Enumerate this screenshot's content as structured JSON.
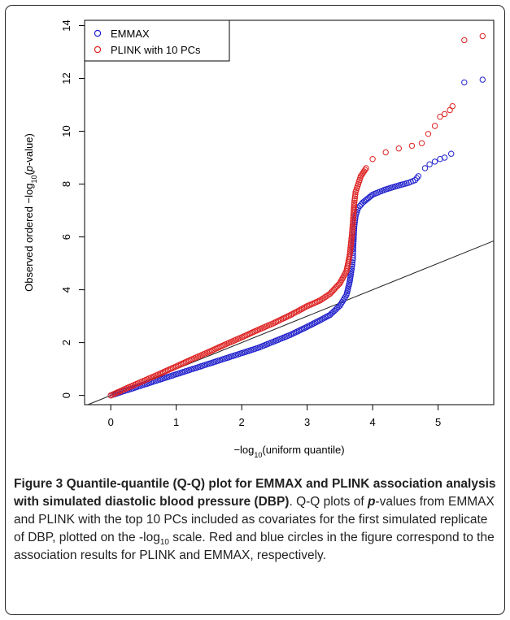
{
  "chart_data": {
    "type": "scatter",
    "title": "",
    "xlabel": "−log10(uniform quantile)",
    "ylabel": "Observed ordered −log10(p-value)",
    "xlim": [
      -0.4,
      5.85
    ],
    "ylim": [
      -0.35,
      14.2
    ],
    "xticks": [
      0,
      1,
      2,
      3,
      4,
      5
    ],
    "yticks": [
      0,
      2,
      4,
      6,
      8,
      10,
      12,
      14
    ],
    "reference_line": {
      "slope": 1,
      "intercept": 0
    },
    "legend_position": "top-left",
    "series": [
      {
        "name": "EMMAX",
        "color": "#2222cc",
        "points": [
          [
            0.0,
            0.0
          ],
          [
            0.25,
            0.2
          ],
          [
            0.5,
            0.4
          ],
          [
            0.75,
            0.6
          ],
          [
            1.0,
            0.8
          ],
          [
            1.25,
            1.0
          ],
          [
            1.5,
            1.2
          ],
          [
            1.75,
            1.4
          ],
          [
            2.0,
            1.6
          ],
          [
            2.25,
            1.8
          ],
          [
            2.5,
            2.05
          ],
          [
            2.75,
            2.3
          ],
          [
            3.0,
            2.6
          ],
          [
            3.2,
            2.85
          ],
          [
            3.35,
            3.05
          ],
          [
            3.5,
            3.4
          ],
          [
            3.6,
            3.8
          ],
          [
            3.65,
            4.3
          ],
          [
            3.68,
            4.8
          ],
          [
            3.7,
            5.2
          ],
          [
            3.7,
            5.4
          ],
          [
            3.72,
            6.4
          ],
          [
            3.74,
            6.8
          ],
          [
            3.78,
            7.1
          ],
          [
            3.85,
            7.3
          ],
          [
            4.0,
            7.6
          ],
          [
            4.2,
            7.8
          ],
          [
            4.4,
            7.95
          ],
          [
            4.55,
            8.05
          ],
          [
            4.65,
            8.15
          ],
          [
            4.7,
            8.3
          ],
          [
            4.8,
            8.6
          ],
          [
            4.87,
            8.75
          ],
          [
            4.95,
            8.85
          ],
          [
            5.03,
            8.95
          ],
          [
            5.1,
            9.0
          ],
          [
            5.2,
            9.15
          ],
          [
            5.4,
            11.85
          ],
          [
            5.68,
            11.95
          ]
        ]
      },
      {
        "name": "PLINK with 10 PCs",
        "color": "#dd2222",
        "points": [
          [
            0.0,
            0.0
          ],
          [
            0.25,
            0.28
          ],
          [
            0.5,
            0.55
          ],
          [
            0.75,
            0.82
          ],
          [
            1.0,
            1.1
          ],
          [
            1.25,
            1.38
          ],
          [
            1.5,
            1.65
          ],
          [
            1.75,
            1.93
          ],
          [
            2.0,
            2.2
          ],
          [
            2.25,
            2.48
          ],
          [
            2.5,
            2.75
          ],
          [
            2.75,
            3.05
          ],
          [
            3.0,
            3.38
          ],
          [
            3.2,
            3.6
          ],
          [
            3.35,
            3.85
          ],
          [
            3.5,
            4.25
          ],
          [
            3.6,
            4.7
          ],
          [
            3.65,
            5.3
          ],
          [
            3.68,
            6.0
          ],
          [
            3.7,
            6.6
          ],
          [
            3.72,
            7.3
          ],
          [
            3.74,
            7.7
          ],
          [
            3.78,
            8.0
          ],
          [
            3.82,
            8.3
          ],
          [
            3.9,
            8.6
          ],
          [
            4.0,
            8.95
          ],
          [
            4.2,
            9.2
          ],
          [
            4.4,
            9.35
          ],
          [
            4.6,
            9.45
          ],
          [
            4.75,
            9.55
          ],
          [
            4.85,
            9.9
          ],
          [
            4.95,
            10.2
          ],
          [
            5.03,
            10.55
          ],
          [
            5.1,
            10.65
          ],
          [
            5.18,
            10.8
          ],
          [
            5.22,
            10.95
          ],
          [
            5.4,
            13.45
          ],
          [
            5.68,
            13.6
          ]
        ]
      }
    ]
  },
  "caption": {
    "figure_label": "Figure 3",
    "title": " Quantile-quantile (Q-Q) plot for EMMAX and PLINK association analysis with simulated diastolic blood pressure (DBP)",
    "body_1": ". Q-Q plots of ",
    "p_letter": "p",
    "body_2": "-values from EMMAX and PLINK with the top 10 PCs included as covariates for the first simulated replicate of DBP, plotted on the -log",
    "sub_10": "10",
    "body_3": " scale. Red and blue circles in the figure correspond to the association results for PLINK and EMMAX, respectively."
  }
}
